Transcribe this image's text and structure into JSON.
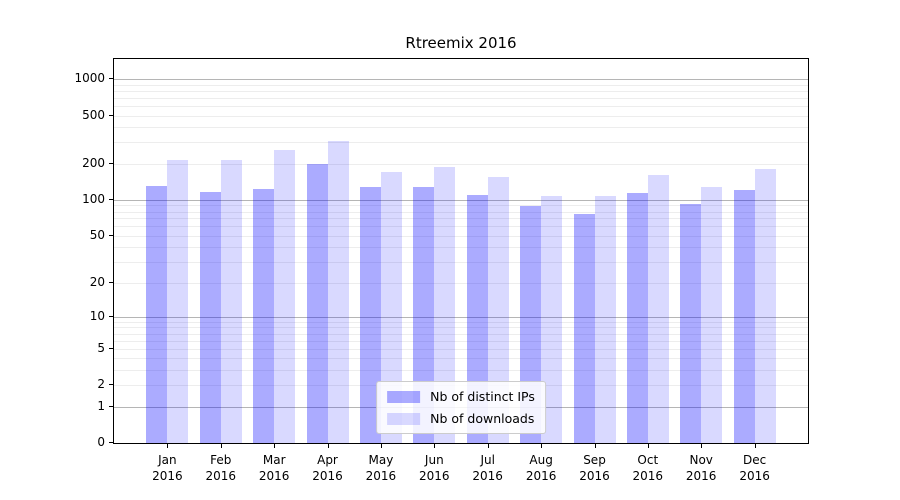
{
  "title": "Rtreemix 2016",
  "chart_data": {
    "type": "bar",
    "title": "Rtreemix 2016",
    "scale": "log1p",
    "categories": [
      "Jan",
      "Feb",
      "Mar",
      "Apr",
      "May",
      "Jun",
      "Jul",
      "Aug",
      "Sep",
      "Oct",
      "Nov",
      "Dec"
    ],
    "year_label": "2016",
    "series": [
      {
        "name": "Nb of distinct IPs",
        "color": "rgba(0,0,255,0.33)",
        "values": [
          130,
          116,
          124,
          198,
          127,
          127,
          110,
          89,
          77,
          115,
          92,
          122
        ]
      },
      {
        "name": "Nb of downloads",
        "color": "rgba(0,0,255,0.15)",
        "values": [
          214,
          214,
          262,
          310,
          172,
          186,
          154,
          107,
          108,
          162,
          128,
          182
        ]
      }
    ],
    "yticks": [
      0,
      1,
      2,
      5,
      10,
      20,
      50,
      100,
      200,
      500,
      1000
    ],
    "ylim": [
      0,
      1470
    ],
    "grid": {
      "major_values": [
        1,
        10,
        100,
        1000
      ],
      "minor_values": [
        2,
        3,
        4,
        5,
        6,
        7,
        8,
        9,
        20,
        30,
        40,
        50,
        60,
        70,
        80,
        90,
        200,
        300,
        400,
        500,
        600,
        700,
        800,
        900
      ]
    },
    "legend_position": "lower center",
    "colors": {
      "major_grid": "#b5b5b5",
      "minor_grid": "#ededed",
      "axis": "#000000",
      "background": "#ffffff"
    }
  }
}
